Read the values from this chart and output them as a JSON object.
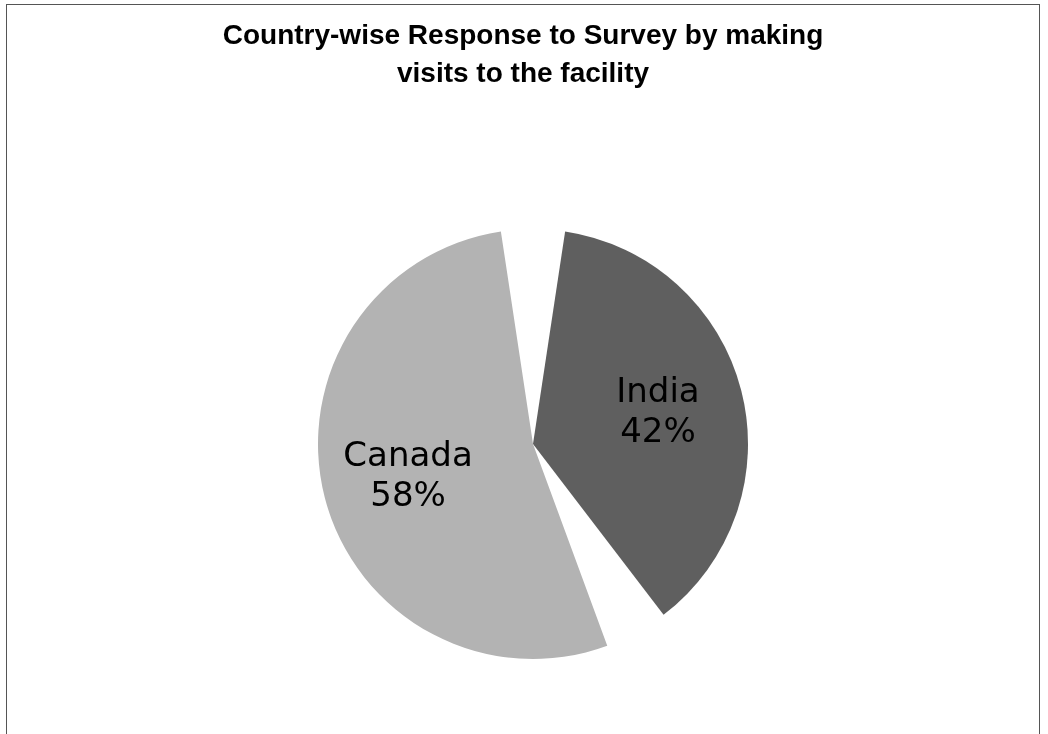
{
  "chart_data": {
    "type": "pie",
    "title": "Country-wise Response to Survey by  making visits to the facility",
    "categories": [
      "India",
      "Canada"
    ],
    "values": [
      42,
      58
    ],
    "colors": [
      "#5f5f5f",
      "#b3b3b3"
    ],
    "value_labels": [
      "42%",
      "58%"
    ]
  }
}
